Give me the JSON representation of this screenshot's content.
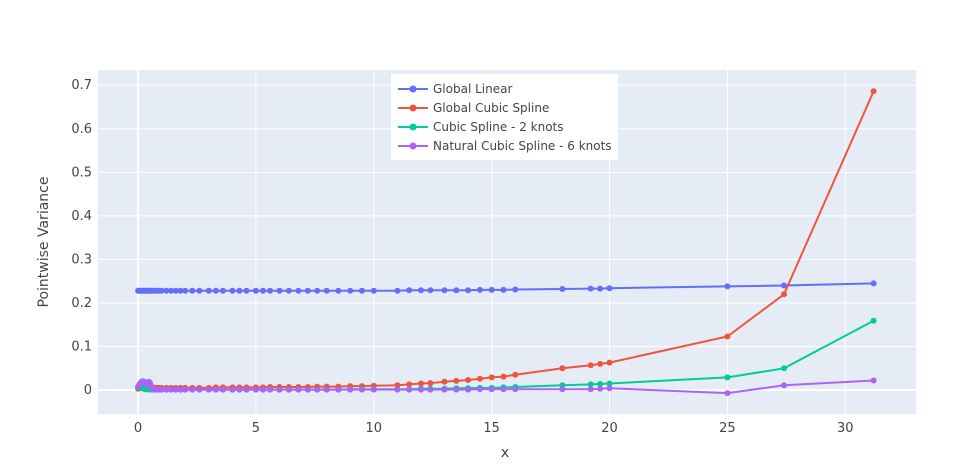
{
  "chart_data": {
    "type": "line",
    "title": "",
    "xlabel": "x",
    "ylabel": "Pointwise Variance",
    "xlim": [
      -1.7,
      33.0
    ],
    "ylim": [
      -0.055,
      0.735
    ],
    "x_ticks": [
      0,
      5,
      10,
      15,
      20,
      25,
      30
    ],
    "y_ticks": [
      0,
      0.1,
      0.2,
      0.3,
      0.4,
      0.5,
      0.6,
      0.7
    ],
    "x_tick_labels": [
      "0",
      "5",
      "10",
      "15",
      "20",
      "25",
      "30"
    ],
    "y_tick_labels": [
      "0",
      "0.1",
      "0.2",
      "0.3",
      "0.4",
      "0.5",
      "0.6",
      "0.7"
    ],
    "grid": true,
    "legend_position": "top-center",
    "plot_background": "#E5ECF6",
    "x": [
      0.0,
      0.05,
      0.1,
      0.15,
      0.2,
      0.25,
      0.3,
      0.35,
      0.4,
      0.45,
      0.5,
      0.55,
      0.6,
      0.65,
      0.7,
      0.8,
      0.9,
      1.0,
      1.2,
      1.4,
      1.6,
      1.8,
      2.0,
      2.3,
      2.6,
      3.0,
      3.3,
      3.6,
      4.0,
      4.3,
      4.6,
      5.0,
      5.3,
      5.6,
      6.0,
      6.4,
      6.8,
      7.2,
      7.6,
      8.0,
      8.5,
      9.0,
      9.5,
      10.0,
      11.0,
      11.5,
      12.0,
      12.4,
      13.0,
      13.5,
      14.0,
      14.5,
      15.0,
      15.5,
      16.0,
      18.0,
      19.2,
      19.6,
      20.0,
      25.0,
      27.4,
      31.2
    ],
    "series": [
      {
        "name": "Global Linear",
        "color": "#636EFA",
        "values": [
          0.228,
          0.228,
          0.228,
          0.228,
          0.228,
          0.228,
          0.228,
          0.228,
          0.228,
          0.228,
          0.228,
          0.228,
          0.228,
          0.228,
          0.228,
          0.228,
          0.228,
          0.228,
          0.228,
          0.228,
          0.228,
          0.228,
          0.228,
          0.228,
          0.228,
          0.228,
          0.228,
          0.228,
          0.228,
          0.228,
          0.228,
          0.228,
          0.228,
          0.228,
          0.228,
          0.228,
          0.228,
          0.228,
          0.228,
          0.228,
          0.228,
          0.228,
          0.228,
          0.228,
          0.228,
          0.229,
          0.229,
          0.229,
          0.229,
          0.229,
          0.229,
          0.23,
          0.23,
          0.23,
          0.231,
          0.232,
          0.233,
          0.233,
          0.234,
          0.238,
          0.24,
          0.245
        ]
      },
      {
        "name": "Global Cubic Spline",
        "color": "#EF553B",
        "values": [
          0.003,
          0.004,
          0.005,
          0.006,
          0.007,
          0.006,
          0.006,
          0.005,
          0.005,
          0.005,
          0.005,
          0.005,
          0.005,
          0.005,
          0.005,
          0.005,
          0.005,
          0.005,
          0.005,
          0.005,
          0.005,
          0.005,
          0.005,
          0.005,
          0.005,
          0.005,
          0.006,
          0.006,
          0.006,
          0.006,
          0.006,
          0.006,
          0.006,
          0.007,
          0.007,
          0.007,
          0.007,
          0.007,
          0.008,
          0.008,
          0.008,
          0.009,
          0.009,
          0.01,
          0.011,
          0.013,
          0.015,
          0.016,
          0.019,
          0.021,
          0.023,
          0.026,
          0.029,
          0.031,
          0.035,
          0.05,
          0.057,
          0.06,
          0.063,
          0.123,
          0.22,
          0.686
        ]
      },
      {
        "name": "Cubic Spline - 2 knots",
        "color": "#00CC96",
        "values": [
          0.005,
          0.007,
          0.008,
          0.006,
          0.004,
          0.003,
          0.002,
          0.002,
          0.002,
          0.002,
          0.002,
          0.001,
          0.001,
          0.001,
          0.001,
          0.001,
          0.001,
          0.001,
          0.001,
          0.001,
          0.001,
          0.001,
          0.001,
          0.001,
          0.001,
          0.001,
          0.001,
          0.001,
          0.001,
          0.001,
          0.001,
          0.001,
          0.001,
          0.001,
          0.001,
          0.001,
          0.001,
          0.001,
          0.001,
          0.001,
          0.001,
          0.002,
          0.002,
          0.002,
          0.002,
          0.002,
          0.003,
          0.003,
          0.003,
          0.004,
          0.004,
          0.005,
          0.005,
          0.006,
          0.007,
          0.011,
          0.013,
          0.014,
          0.015,
          0.029,
          0.05,
          0.159
        ]
      },
      {
        "name": "Natural Cubic Spline - 6 knots",
        "color": "#AB63FA",
        "values": [
          0.008,
          0.012,
          0.016,
          0.019,
          0.02,
          0.019,
          0.016,
          0.013,
          0.016,
          0.019,
          0.017,
          0.01,
          0.004,
          0.002,
          0.001,
          0.001,
          0.001,
          0.001,
          0.001,
          0.001,
          0.001,
          0.001,
          0.001,
          0.001,
          0.001,
          0.001,
          0.001,
          0.001,
          0.001,
          0.001,
          0.001,
          0.001,
          0.001,
          0.001,
          0.001,
          0.001,
          0.001,
          0.001,
          0.001,
          0.001,
          0.001,
          0.001,
          0.001,
          0.001,
          0.001,
          0.001,
          0.001,
          0.001,
          0.001,
          0.001,
          0.001,
          0.002,
          0.002,
          0.002,
          0.002,
          0.002,
          0.002,
          0.003,
          0.004,
          -0.007,
          0.011,
          0.022
        ]
      }
    ]
  }
}
